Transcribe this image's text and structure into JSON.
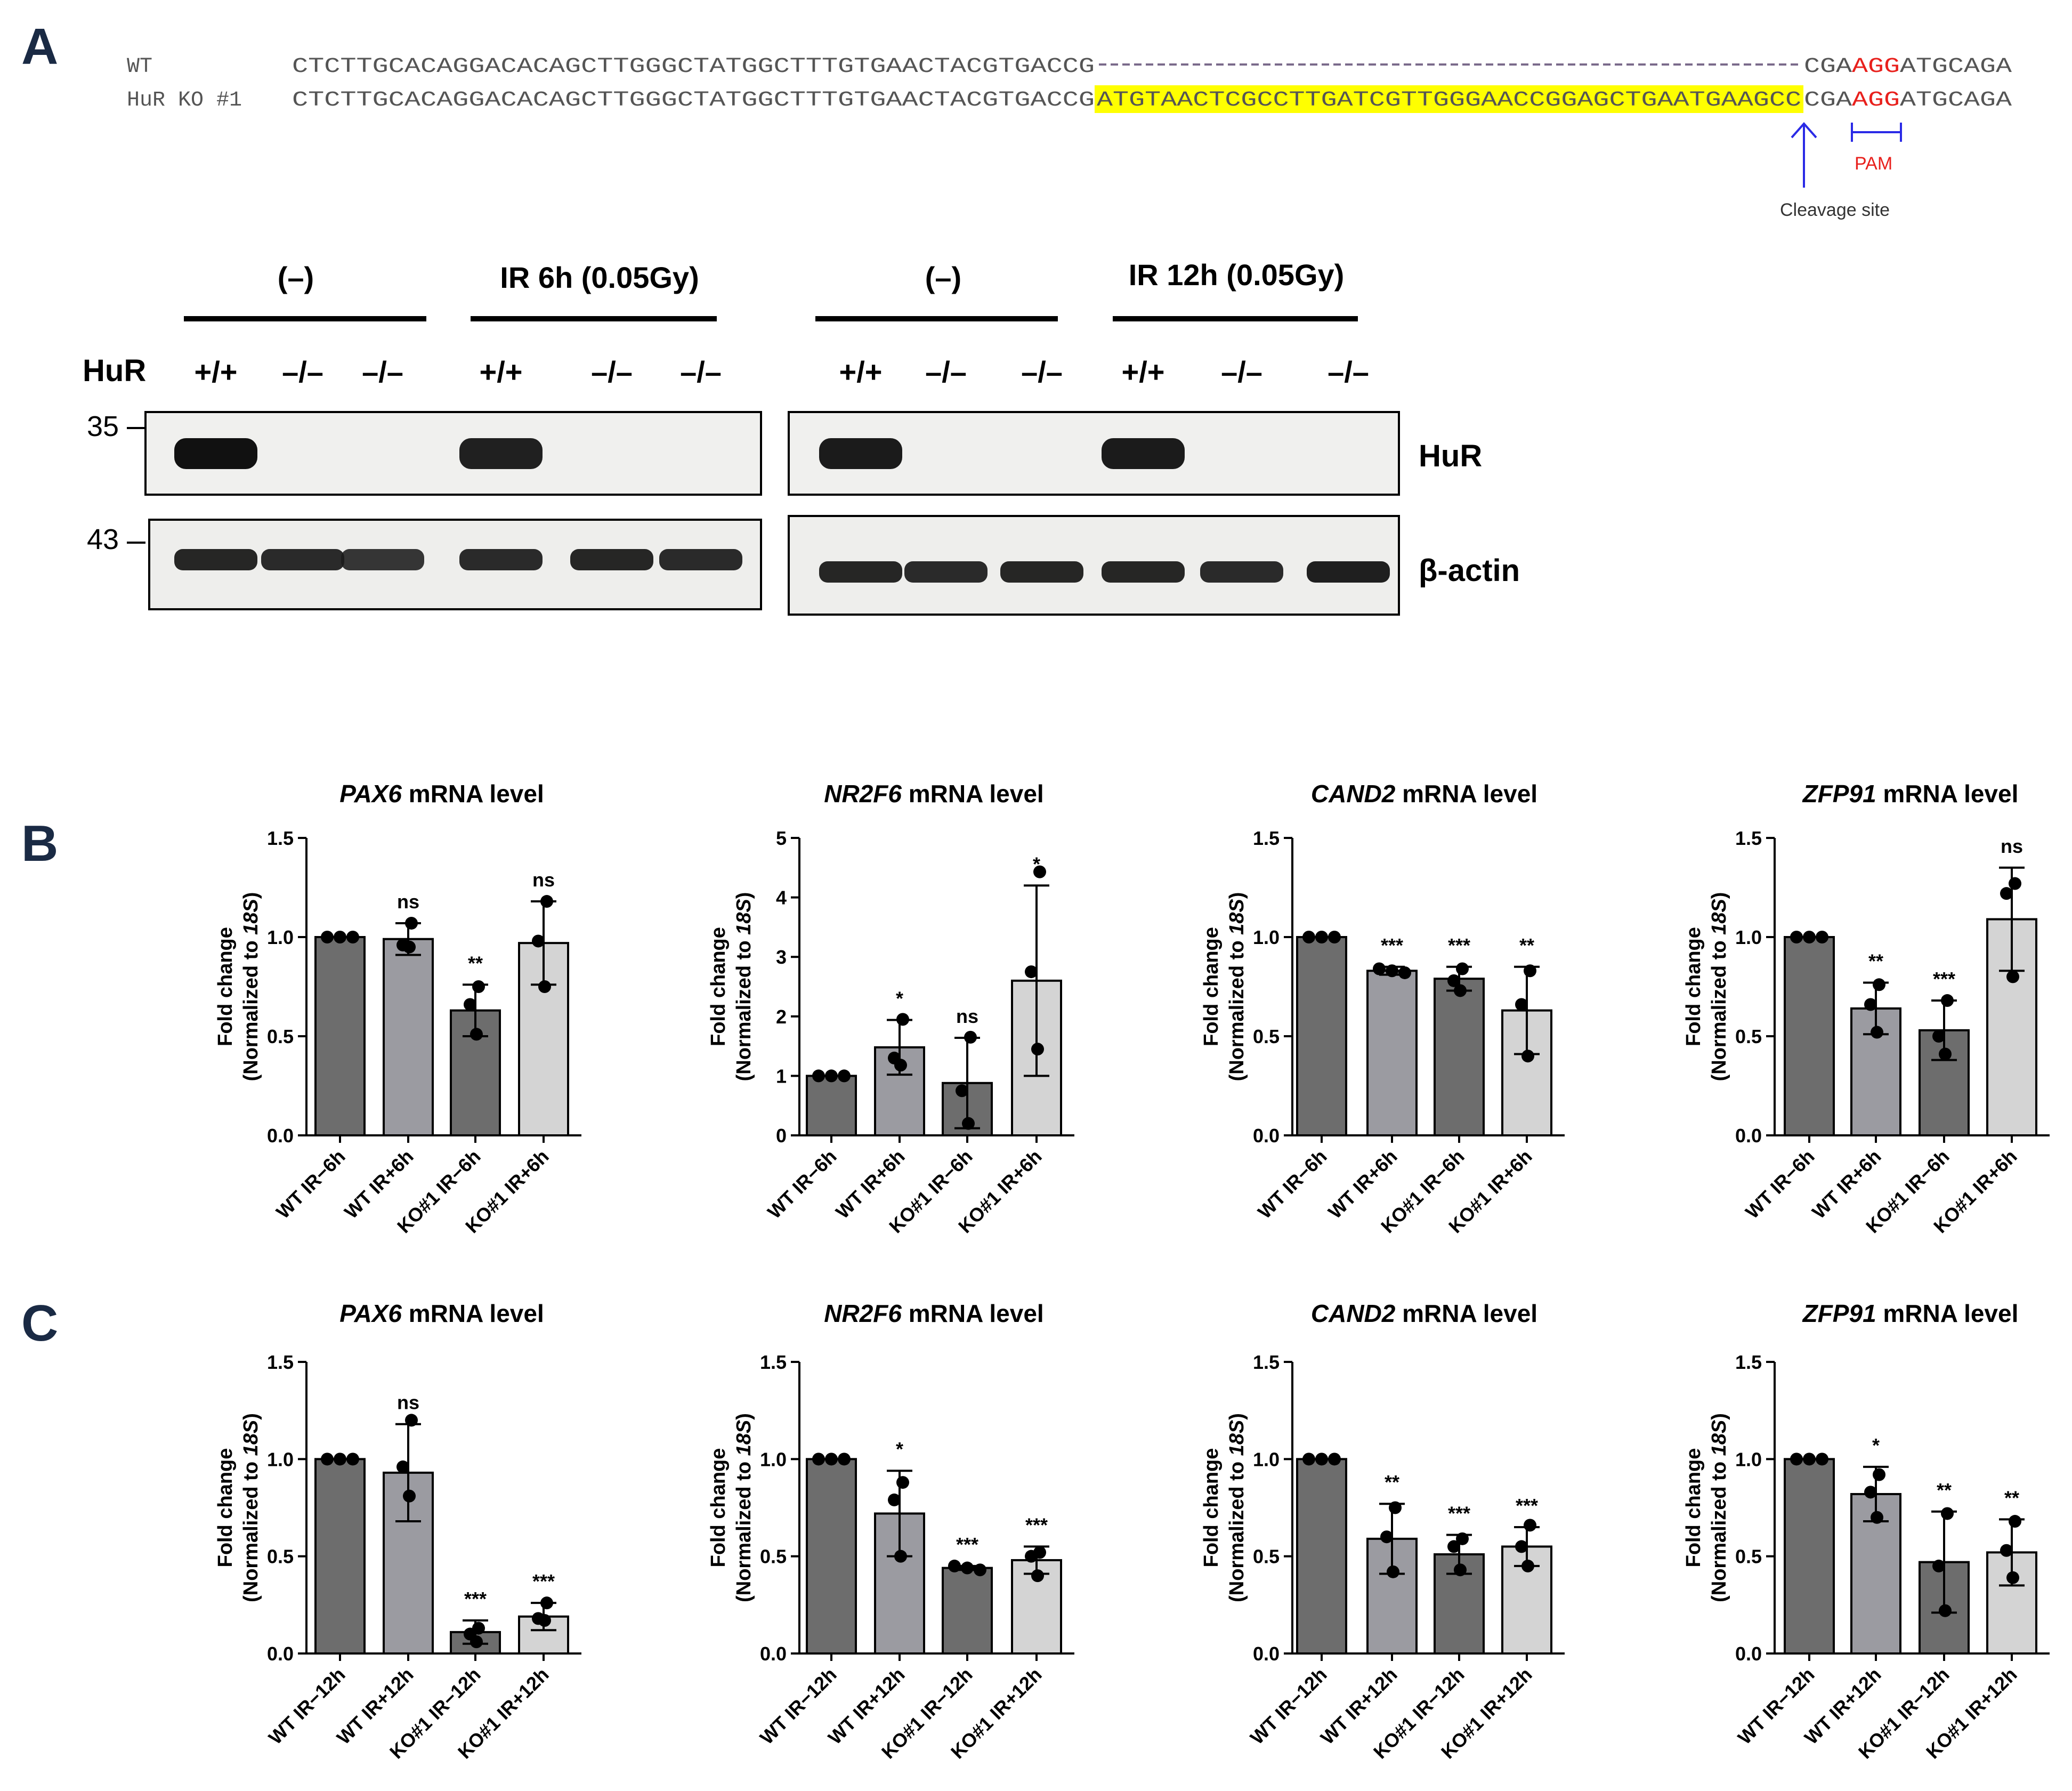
{
  "panel_labels": {
    "a": "A",
    "b": "B",
    "c": "C"
  },
  "sequence": {
    "wt_label": "WT",
    "ko_label": "HuR KO #1",
    "wt_prefix": "CTCTTGCACAGGACACAGCTTGGGCTATGGCTTTGTGAACTACGTGACCG",
    "ko_prefix": "CTCTTGCACAGGACACAGCTTGGGCTATGGCTTTGTGAACTACGTGACCG",
    "insert": "ATGTAACTCGCCTTGATCGTTGGGAACCGGAGCTGAATGAAGCC",
    "suffix_pre": "CGA",
    "pam_seq": "AGG",
    "suffix_post": "ATGCAGA",
    "pam_label": "PAM",
    "cleavage_label": "Cleavage site",
    "colors": {
      "insert_bg": "#ffff00",
      "pam": "#e8201c",
      "arrow": "#2a2ae6",
      "dash": "#7a6a8a",
      "seq_text": "#555555"
    }
  },
  "western": {
    "row_label": "HuR",
    "groups": [
      "(–)",
      "IR 6h (0.05Gy)",
      "(–)",
      "IR 12h (0.05Gy)"
    ],
    "genotypes": [
      "+/+",
      "–/–",
      "–/–",
      "+/+",
      "–/–",
      "–/–",
      "+/+",
      "–/–",
      "–/–",
      "+/+",
      "–/–",
      "–/–"
    ],
    "mw_markers": [
      "35",
      "43"
    ],
    "band_labels": [
      "HuR",
      "β-actin"
    ],
    "hur_band_intensity": [
      1,
      0,
      0,
      0.85,
      0,
      0,
      0.9,
      0,
      0,
      0.9,
      0,
      0
    ],
    "actin_band_intensity": [
      0.9,
      0.85,
      0.75,
      0.85,
      0.9,
      0.85,
      0.9,
      0.85,
      0.9,
      0.9,
      0.85,
      0.95
    ]
  },
  "chart_data": [
    {
      "type": "bar",
      "row": "B",
      "title_gene": "PAX6",
      "title_rest": " mRNA level",
      "categories": [
        "WT IR−6h",
        "WT IR+6h",
        "KO#1 IR−6h",
        "KO#1 IR+6h"
      ],
      "values": [
        1.0,
        0.99,
        0.63,
        0.97
      ],
      "errors": [
        0,
        0.08,
        0.13,
        0.21
      ],
      "points": [
        [
          1.0,
          1.0,
          1.0
        ],
        [
          1.07,
          0.96,
          0.95
        ],
        [
          0.75,
          0.66,
          0.51
        ],
        [
          1.18,
          0.98,
          0.75
        ]
      ],
      "significance": [
        "",
        "ns",
        "**",
        "ns"
      ],
      "ylim": [
        0,
        1.5
      ],
      "yticks": [
        "0.0",
        "0.5",
        "1.0",
        "1.5"
      ],
      "ytick_values": [
        0,
        0.5,
        1.0,
        1.5
      ],
      "ylabel_1": "Fold change",
      "ylabel_2": "(Normalized to ",
      "ylabel_italic": "18S",
      "ylabel_3": ")",
      "bar_colors": [
        "#6d6d6d",
        "#9b9ba1",
        "#6d6d6d",
        "#d4d4d4"
      ]
    },
    {
      "type": "bar",
      "row": "B",
      "title_gene": "NR2F6",
      "title_rest": " mRNA level",
      "categories": [
        "WT IR−6h",
        "WT IR+6h",
        "KO#1 IR−6h",
        "KO#1 IR+6h"
      ],
      "values": [
        1.0,
        1.48,
        0.88,
        2.6
      ],
      "errors": [
        0,
        0.46,
        0.76,
        1.6
      ],
      "points": [
        [
          1.0,
          1.0,
          1.0
        ],
        [
          1.95,
          1.3,
          1.18
        ],
        [
          1.65,
          0.75,
          0.2
        ],
        [
          4.43,
          2.75,
          1.45
        ]
      ],
      "significance": [
        "",
        "*",
        "ns",
        "*"
      ],
      "ylim": [
        0,
        5
      ],
      "yticks": [
        "0",
        "1",
        "2",
        "3",
        "4",
        "5"
      ],
      "ytick_values": [
        0,
        1,
        2,
        3,
        4,
        5
      ],
      "ylabel_1": "Fold change",
      "ylabel_2": "(Normalized to ",
      "ylabel_italic": "18S",
      "ylabel_3": ")",
      "bar_colors": [
        "#6d6d6d",
        "#9b9ba1",
        "#6d6d6d",
        "#d4d4d4"
      ]
    },
    {
      "type": "bar",
      "row": "B",
      "title_gene": "CAND2",
      "title_rest": " mRNA level",
      "categories": [
        "WT IR−6h",
        "WT IR+6h",
        "KO#1 IR−6h",
        "KO#1 IR+6h"
      ],
      "values": [
        1.0,
        0.83,
        0.79,
        0.63
      ],
      "errors": [
        0,
        0.02,
        0.06,
        0.22
      ],
      "points": [
        [
          1.0,
          1.0,
          1.0
        ],
        [
          0.84,
          0.83,
          0.82
        ],
        [
          0.84,
          0.78,
          0.73
        ],
        [
          0.83,
          0.66,
          0.4
        ]
      ],
      "significance": [
        "",
        "***",
        "***",
        "**"
      ],
      "ylim": [
        0,
        1.5
      ],
      "yticks": [
        "0.0",
        "0.5",
        "1.0",
        "1.5"
      ],
      "ytick_values": [
        0,
        0.5,
        1.0,
        1.5
      ],
      "ylabel_1": "Fold change",
      "ylabel_2": "(Normalized to ",
      "ylabel_italic": "18S",
      "ylabel_3": ")",
      "bar_colors": [
        "#6d6d6d",
        "#9b9ba1",
        "#6d6d6d",
        "#d4d4d4"
      ]
    },
    {
      "type": "bar",
      "row": "B",
      "title_gene": "ZFP91",
      "title_rest": " mRNA level",
      "categories": [
        "WT IR−6h",
        "WT IR+6h",
        "KO#1 IR−6h",
        "KO#1 IR+6h"
      ],
      "values": [
        1.0,
        0.64,
        0.53,
        1.09
      ],
      "errors": [
        0,
        0.13,
        0.15,
        0.26
      ],
      "points": [
        [
          1.0,
          1.0,
          1.0
        ],
        [
          0.76,
          0.66,
          0.52
        ],
        [
          0.68,
          0.5,
          0.41
        ],
        [
          1.27,
          1.22,
          0.8
        ]
      ],
      "significance": [
        "",
        "**",
        "***",
        "ns"
      ],
      "ylim": [
        0,
        1.5
      ],
      "yticks": [
        "0.0",
        "0.5",
        "1.0",
        "1.5"
      ],
      "ytick_values": [
        0,
        0.5,
        1.0,
        1.5
      ],
      "ylabel_1": "Fold change",
      "ylabel_2": "(Normalized to ",
      "ylabel_italic": "18S",
      "ylabel_3": ")",
      "bar_colors": [
        "#6d6d6d",
        "#9b9ba1",
        "#6d6d6d",
        "#d4d4d4"
      ]
    },
    {
      "type": "bar",
      "row": "C",
      "title_gene": "PAX6",
      "title_rest": " mRNA level",
      "categories": [
        "WT IR−12h",
        "WT IR+12h",
        "KO#1 IR−12h",
        "KO#1 IR+12h"
      ],
      "values": [
        1.0,
        0.93,
        0.11,
        0.19
      ],
      "errors": [
        0,
        0.25,
        0.06,
        0.07
      ],
      "points": [
        [
          1.0,
          1.0,
          1.0
        ],
        [
          1.2,
          0.96,
          0.81
        ],
        [
          0.13,
          0.1,
          0.06
        ],
        [
          0.26,
          0.18,
          0.17
        ]
      ],
      "significance": [
        "",
        "ns",
        "***",
        "***"
      ],
      "ylim": [
        0,
        1.5
      ],
      "yticks": [
        "0.0",
        "0.5",
        "1.0",
        "1.5"
      ],
      "ytick_values": [
        0,
        0.5,
        1.0,
        1.5
      ],
      "ylabel_1": "Fold change",
      "ylabel_2": "(Normalized to ",
      "ylabel_italic": "18S",
      "ylabel_3": ")",
      "bar_colors": [
        "#6d6d6d",
        "#9b9ba1",
        "#6d6d6d",
        "#d4d4d4"
      ]
    },
    {
      "type": "bar",
      "row": "C",
      "title_gene": "NR2F6",
      "title_rest": " mRNA level",
      "categories": [
        "WT IR−12h",
        "WT IR+12h",
        "KO#1 IR−12h",
        "KO#1 IR+12h"
      ],
      "values": [
        1.0,
        0.72,
        0.44,
        0.48
      ],
      "errors": [
        0,
        0.22,
        0.01,
        0.07
      ],
      "points": [
        [
          1.0,
          1.0,
          1.0
        ],
        [
          0.88,
          0.79,
          0.5
        ],
        [
          0.45,
          0.44,
          0.43
        ],
        [
          0.52,
          0.5,
          0.4
        ]
      ],
      "significance": [
        "",
        "*",
        "***",
        "***"
      ],
      "ylim": [
        0,
        1.5
      ],
      "yticks": [
        "0.0",
        "0.5",
        "1.0",
        "1.5"
      ],
      "ytick_values": [
        0,
        0.5,
        1.0,
        1.5
      ],
      "ylabel_1": "Fold change",
      "ylabel_2": "(Normalized to ",
      "ylabel_italic": "18S",
      "ylabel_3": ")",
      "bar_colors": [
        "#6d6d6d",
        "#9b9ba1",
        "#6d6d6d",
        "#d4d4d4"
      ]
    },
    {
      "type": "bar",
      "row": "C",
      "title_gene": "CAND2",
      "title_rest": " mRNA level",
      "categories": [
        "WT IR−12h",
        "WT IR+12h",
        "KO#1 IR−12h",
        "KO#1 IR+12h"
      ],
      "values": [
        1.0,
        0.59,
        0.51,
        0.55
      ],
      "errors": [
        0,
        0.18,
        0.1,
        0.1
      ],
      "points": [
        [
          1.0,
          1.0,
          1.0
        ],
        [
          0.75,
          0.6,
          0.42
        ],
        [
          0.59,
          0.55,
          0.43
        ],
        [
          0.66,
          0.55,
          0.45
        ]
      ],
      "significance": [
        "",
        "**",
        "***",
        "***"
      ],
      "ylim": [
        0,
        1.5
      ],
      "yticks": [
        "0.0",
        "0.5",
        "1.0",
        "1.5"
      ],
      "ytick_values": [
        0,
        0.5,
        1.0,
        1.5
      ],
      "ylabel_1": "Fold change",
      "ylabel_2": "(Normalized to ",
      "ylabel_italic": "18S",
      "ylabel_3": ")",
      "bar_colors": [
        "#6d6d6d",
        "#9b9ba1",
        "#6d6d6d",
        "#d4d4d4"
      ]
    },
    {
      "type": "bar",
      "row": "C",
      "title_gene": "ZFP91",
      "title_rest": " mRNA level",
      "categories": [
        "WT IR−12h",
        "WT IR+12h",
        "KO#1 IR−12h",
        "KO#1 IR+12h"
      ],
      "values": [
        1.0,
        0.82,
        0.47,
        0.52
      ],
      "errors": [
        0,
        0.14,
        0.26,
        0.17
      ],
      "points": [
        [
          1.0,
          1.0,
          1.0
        ],
        [
          0.92,
          0.83,
          0.7
        ],
        [
          0.72,
          0.45,
          0.22
        ],
        [
          0.68,
          0.53,
          0.39
        ]
      ],
      "significance": [
        "",
        "*",
        "**",
        "**"
      ],
      "ylim": [
        0,
        1.5
      ],
      "yticks": [
        "0.0",
        "0.5",
        "1.0",
        "1.5"
      ],
      "ytick_values": [
        0,
        0.5,
        1.0,
        1.5
      ],
      "ylabel_1": "Fold change",
      "ylabel_2": "(Normalized to ",
      "ylabel_italic": "18S",
      "ylabel_3": ")",
      "bar_colors": [
        "#6d6d6d",
        "#9b9ba1",
        "#6d6d6d",
        "#d4d4d4"
      ]
    }
  ]
}
